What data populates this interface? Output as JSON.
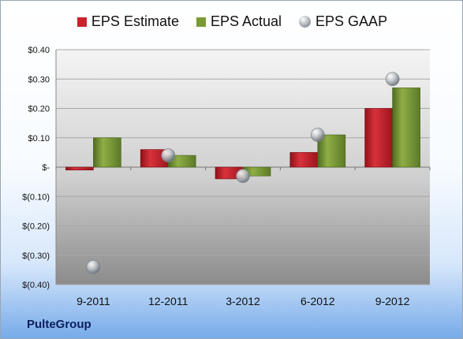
{
  "company": "PulteGroup",
  "chart_data": {
    "type": "bar",
    "categories": [
      "9-2011",
      "12-2011",
      "3-2012",
      "6-2012",
      "9-2012"
    ],
    "series": [
      {
        "name": "EPS Estimate",
        "type": "bar",
        "color": "#c8232b",
        "values": [
          -0.01,
          0.06,
          -0.04,
          0.05,
          0.2
        ]
      },
      {
        "name": "EPS Actual",
        "type": "bar",
        "color": "#7a9a35",
        "values": [
          0.1,
          0.04,
          -0.03,
          0.11,
          0.27
        ]
      },
      {
        "name": "EPS GAAP",
        "type": "scatter",
        "color": "#a8adb2",
        "values": [
          -0.34,
          0.04,
          -0.03,
          0.11,
          0.3
        ]
      }
    ],
    "yticks": [
      "$0.40",
      "$0.30",
      "$0.20",
      "$0.10",
      "$-",
      "$(0.10)",
      "$(0.20)",
      "$(0.30)",
      "$(0.40)"
    ],
    "ytick_values": [
      0.4,
      0.3,
      0.2,
      0.1,
      0.0,
      -0.1,
      -0.2,
      -0.3,
      -0.4
    ],
    "ylim": [
      -0.4,
      0.4
    ],
    "legend_position": "top",
    "grid": true
  }
}
